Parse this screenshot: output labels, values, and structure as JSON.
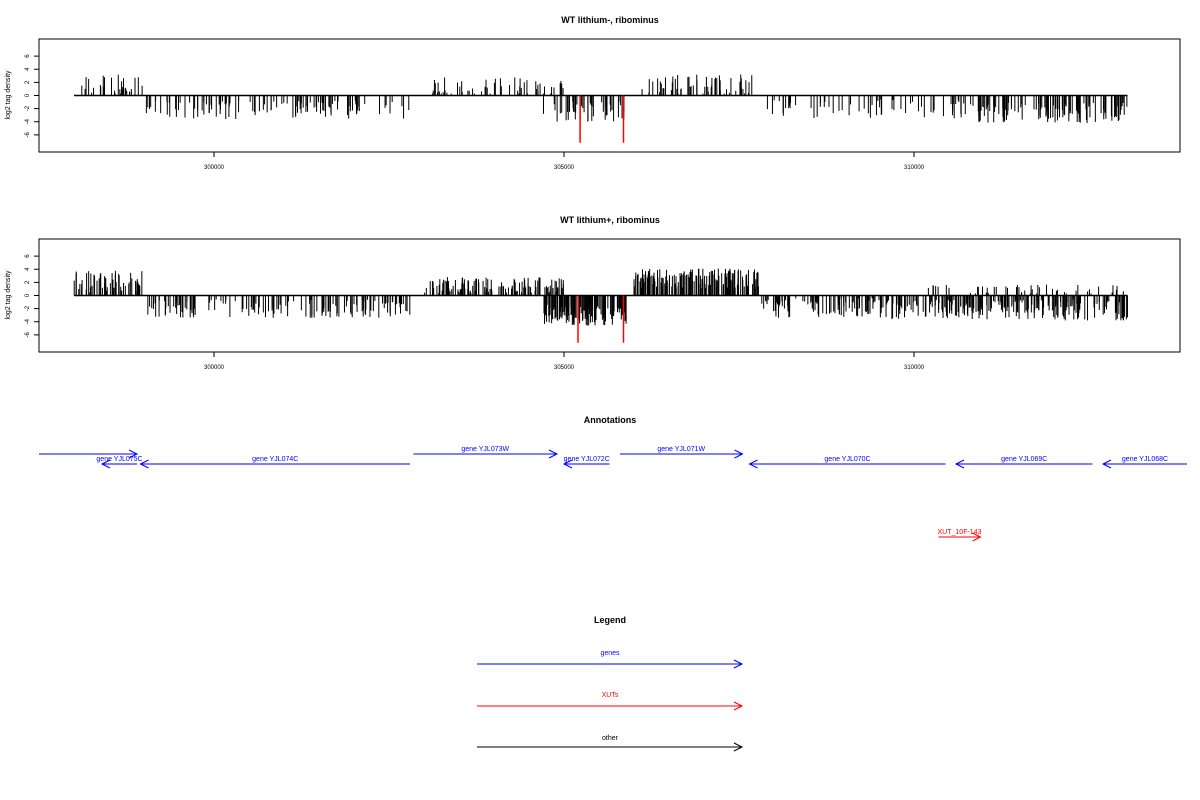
{
  "panels": [
    {
      "title": "WT lithium-, ribominus",
      "ylabel": "log2 tag density",
      "yticks": [
        -6,
        -4,
        -2,
        0,
        2,
        4,
        6
      ],
      "xticks": [
        300000,
        305000,
        310000
      ],
      "ylim": [
        -8,
        8
      ],
      "xlim": [
        297500,
        313800
      ],
      "highlight_color": "#ff0000",
      "segments": [
        {
          "start": 298000,
          "end": 299000,
          "sign": 1,
          "mean": 1.6,
          "spread": 1.6,
          "count": 32
        },
        {
          "start": 299000,
          "end": 302800,
          "sign": -1,
          "mean": -2.2,
          "spread": 1.4,
          "count": 115
        },
        {
          "start": 303100,
          "end": 305000,
          "sign": 1,
          "mean": 1.4,
          "spread": 1.4,
          "count": 55
        },
        {
          "start": 304700,
          "end": 305900,
          "sign": -1,
          "mean": -2.4,
          "spread": 1.6,
          "count": 48
        },
        {
          "start": 306100,
          "end": 307700,
          "sign": 1,
          "mean": 1.6,
          "spread": 1.6,
          "count": 58
        },
        {
          "start": 307900,
          "end": 310900,
          "sign": -1,
          "mean": -2.0,
          "spread": 1.5,
          "count": 65
        },
        {
          "start": 310900,
          "end": 313050,
          "sign": -1,
          "mean": -2.6,
          "spread": 1.6,
          "count": 120
        }
      ],
      "highlights": [
        {
          "x": 305230,
          "y": -7.2
        },
        {
          "x": 305850,
          "y": -7.2
        }
      ]
    },
    {
      "title": "WT lithium+, ribominus",
      "ylabel": "log2 tag density",
      "yticks": [
        -6,
        -4,
        -2,
        0,
        2,
        4,
        6
      ],
      "xticks": [
        300000,
        305000,
        310000
      ],
      "ylim": [
        -8,
        8
      ],
      "xlim": [
        297500,
        313800
      ],
      "highlight_color": "#ff0000",
      "segments": [
        {
          "start": 298000,
          "end": 299000,
          "sign": 1,
          "mean": 2.2,
          "spread": 1.7,
          "count": 60
        },
        {
          "start": 299000,
          "end": 302800,
          "sign": -1,
          "mean": -2.0,
          "spread": 1.4,
          "count": 150
        },
        {
          "start": 303000,
          "end": 305000,
          "sign": 1,
          "mean": 1.6,
          "spread": 1.2,
          "count": 130
        },
        {
          "start": 304700,
          "end": 305900,
          "sign": -1,
          "mean": -3.0,
          "spread": 1.6,
          "count": 140
        },
        {
          "start": 306000,
          "end": 307800,
          "sign": 1,
          "mean": 2.6,
          "spread": 1.5,
          "count": 170
        },
        {
          "start": 307800,
          "end": 310900,
          "sign": -1,
          "mean": -2.0,
          "spread": 1.6,
          "count": 180
        },
        {
          "start": 310900,
          "end": 313050,
          "sign": -1,
          "mean": -2.2,
          "spread": 1.6,
          "count": 150
        },
        {
          "start": 310200,
          "end": 313050,
          "sign": 1,
          "mean": 0.9,
          "spread": 0.8,
          "count": 50
        }
      ],
      "highlights": [
        {
          "x": 305200,
          "y": -7.2
        },
        {
          "x": 305850,
          "y": -7.2
        }
      ]
    }
  ],
  "annotations": {
    "title": "Annotations",
    "colors": {
      "gene": "#0000ff",
      "xut": "#ff0000",
      "other": "#000000"
    },
    "features": [
      {
        "label": "",
        "start": 297500,
        "end": 298900,
        "strand": "+",
        "row": 0,
        "type": "gene"
      },
      {
        "label": "gene YJL075C",
        "start": 298400,
        "end": 298900,
        "strand": "-",
        "row": 1,
        "type": "gene"
      },
      {
        "label": "gene YJL074C",
        "start": 298950,
        "end": 302800,
        "strand": "-",
        "row": 1,
        "type": "gene"
      },
      {
        "label": "gene YJL073W",
        "start": 302850,
        "end": 304900,
        "strand": "+",
        "row": 0,
        "type": "gene"
      },
      {
        "label": "gene YJL072C",
        "start": 305000,
        "end": 305650,
        "strand": "-",
        "row": 1,
        "type": "gene"
      },
      {
        "label": "gene YJL071W",
        "start": 305800,
        "end": 307550,
        "strand": "+",
        "row": 0,
        "type": "gene"
      },
      {
        "label": "gene YJL070C",
        "start": 307650,
        "end": 310450,
        "strand": "-",
        "row": 1,
        "type": "gene"
      },
      {
        "label": "gene YJL069C",
        "start": 310600,
        "end": 312550,
        "strand": "-",
        "row": 1,
        "type": "gene"
      },
      {
        "label": "gene YJL068C",
        "start": 312700,
        "end": 313900,
        "strand": "-",
        "row": 1,
        "type": "gene"
      },
      {
        "label": "XUT_10F-143",
        "start": 310350,
        "end": 310950,
        "strand": "+",
        "row": 2,
        "type": "xut"
      }
    ]
  },
  "legend": {
    "title": "Legend",
    "items": [
      {
        "label": "genes",
        "color": "#0000ff"
      },
      {
        "label": "XUTs",
        "color": "#ff0000"
      },
      {
        "label": "other",
        "color": "#000000"
      }
    ]
  }
}
